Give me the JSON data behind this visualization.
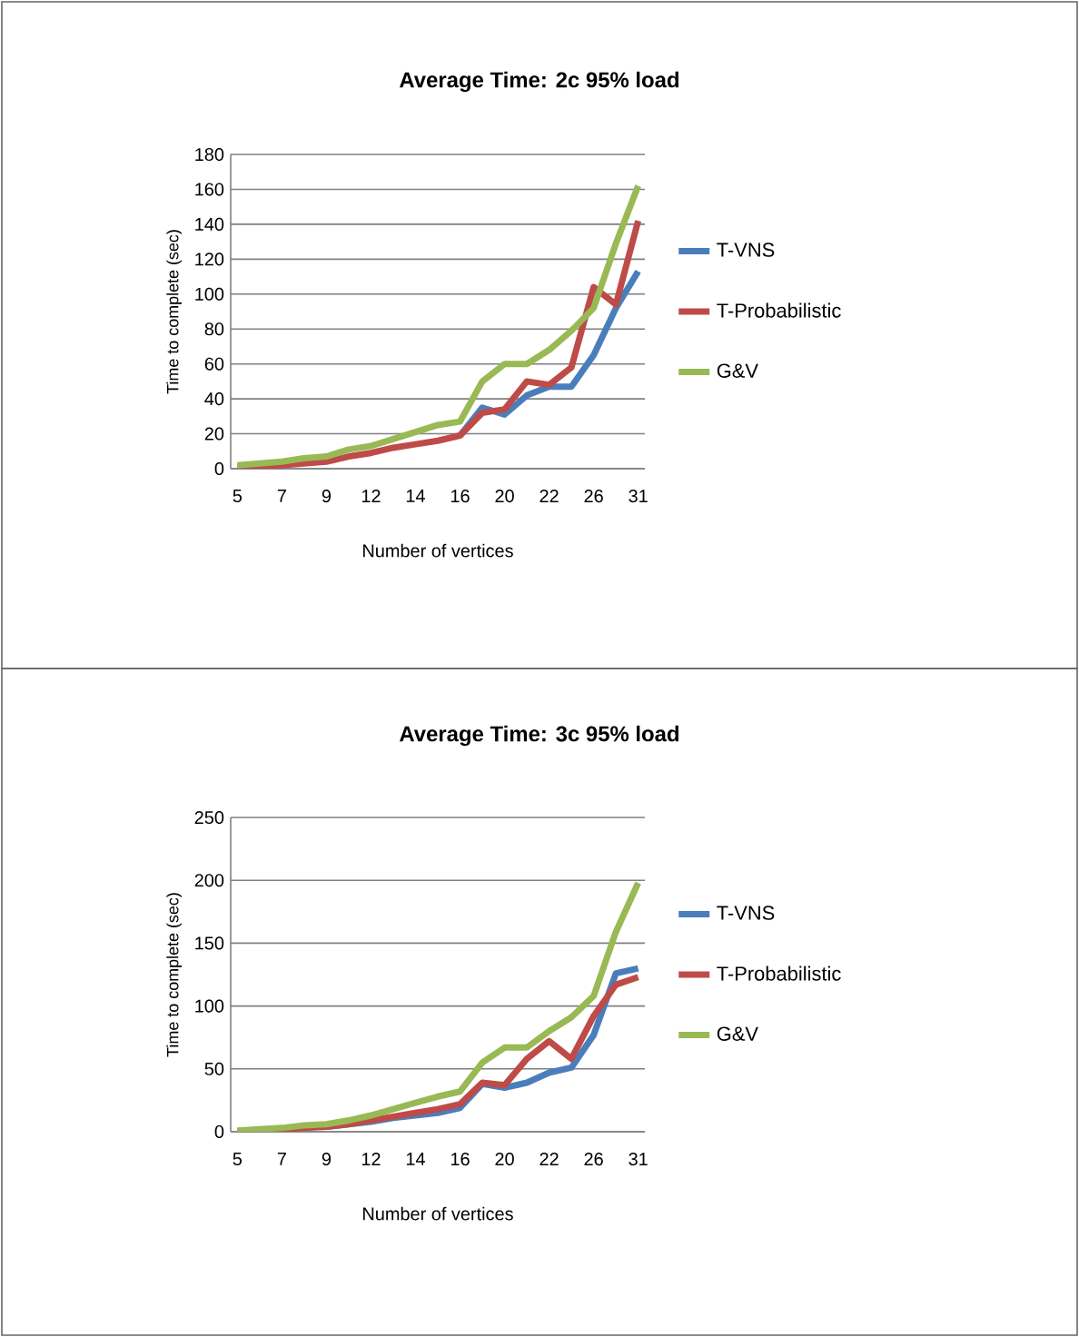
{
  "chart_data": [
    {
      "type": "line",
      "title": "Average Time: 2c 95% load",
      "xlabel": "Number of vertices",
      "ylabel": "Time to complete (sec)",
      "categories": [
        "5",
        null,
        "7",
        null,
        "9",
        null,
        "12",
        null,
        "14",
        null,
        "16",
        null,
        "20",
        null,
        "22",
        null,
        "26",
        null,
        "31"
      ],
      "series": [
        {
          "name": "T-VNS",
          "color": "#4a7ebb",
          "values": [
            null,
            null,
            null,
            null,
            null,
            null,
            null,
            null,
            null,
            null,
            19,
            35,
            31,
            42,
            47,
            47,
            65,
            92,
            113
          ]
        },
        {
          "name": "T-Probabilistic",
          "color": "#be4b48",
          "values": [
            1,
            1,
            2,
            3,
            4,
            7,
            9,
            12,
            14,
            16,
            19,
            32,
            34,
            50,
            48,
            58,
            104,
            94,
            142
          ]
        },
        {
          "name": "G&V",
          "color": "#98b954",
          "values": [
            2,
            3,
            4,
            6,
            7,
            11,
            13,
            17,
            21,
            25,
            27,
            50,
            60,
            60,
            68,
            79,
            92,
            129,
            162
          ]
        }
      ],
      "ylim": [
        0,
        180
      ],
      "yticks": [
        0,
        20,
        40,
        60,
        80,
        100,
        120,
        140,
        160,
        180
      ],
      "grid": "y",
      "legend": "right",
      "line_style": "solid"
    },
    {
      "type": "line",
      "title": "Average Time: 3c 95% load",
      "xlabel": "Number of vertices",
      "ylabel": "Time to complete (sec)",
      "categories": [
        "5",
        null,
        "7",
        null,
        "9",
        null,
        "12",
        null,
        "14",
        null,
        "16",
        null,
        "20",
        null,
        "22",
        null,
        "26",
        null,
        "31"
      ],
      "series": [
        {
          "name": "T-VNS",
          "color": "#4a7ebb",
          "values": [
            null,
            null,
            null,
            null,
            4,
            6,
            8,
            11,
            13,
            15,
            19,
            38,
            35,
            39,
            47,
            51,
            77,
            126,
            130
          ]
        },
        {
          "name": "T-Probabilistic",
          "color": "#be4b48",
          "values": [
            0,
            1,
            2,
            3,
            4,
            6,
            9,
            12,
            15,
            18,
            22,
            39,
            37,
            58,
            72,
            58,
            92,
            117,
            123
          ]
        },
        {
          "name": "G&V",
          "color": "#98b954",
          "values": [
            1,
            2,
            3,
            5,
            6,
            9,
            13,
            18,
            23,
            28,
            32,
            55,
            67,
            67,
            80,
            91,
            108,
            159,
            198
          ]
        }
      ],
      "ylim": [
        0,
        250
      ],
      "yticks": [
        0,
        50,
        100,
        150,
        200,
        250
      ],
      "grid": "y",
      "legend": "right",
      "line_style": "solid"
    }
  ]
}
